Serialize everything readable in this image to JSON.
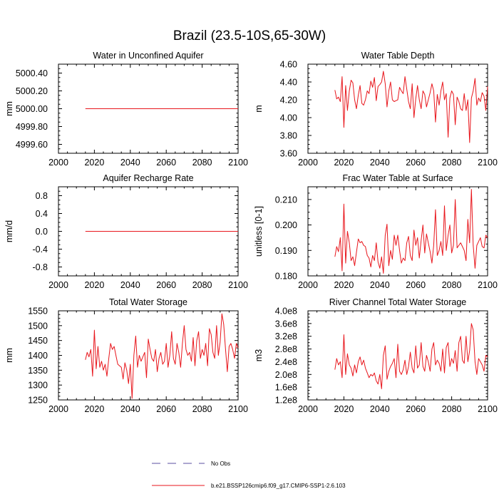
{
  "title": "Brazil (23.5-10S,65-30W)",
  "colors": {
    "series": "#e8161c",
    "obs": "#5b4fa0",
    "axis": "#000000"
  },
  "legend": {
    "obs_label": "No Obs",
    "model_label": "b.e21.BSSP126cmip6.f09_g17.CMIP6-SSP1-2.6.103"
  },
  "chart_data": [
    {
      "type": "line",
      "title": "Water in Unconfined Aquifer",
      "ylabel": "mm",
      "xlim": [
        2000,
        2100
      ],
      "xticks": [
        2000,
        2020,
        2040,
        2060,
        2080,
        2100
      ],
      "ylim": [
        4999.5,
        5000.5
      ],
      "yticks": [
        4999.6,
        4999.8,
        5000.0,
        5000.2,
        5000.4
      ],
      "ytick_labels": [
        "4999.60",
        "4999.80",
        "5000.00",
        "5000.20",
        "5000.40"
      ],
      "x_start": 2015,
      "x_end": 2100,
      "values": [
        5000,
        5000,
        5000,
        5000,
        5000,
        5000,
        5000,
        5000,
        5000,
        5000,
        5000,
        5000,
        5000,
        5000,
        5000,
        5000,
        5000,
        5000,
        5000,
        5000,
        5000,
        5000,
        5000,
        5000,
        5000,
        5000,
        5000,
        5000,
        5000,
        5000,
        5000,
        5000,
        5000,
        5000,
        5000,
        5000,
        5000,
        5000,
        5000,
        5000,
        5000,
        5000,
        5000,
        5000,
        5000,
        5000,
        5000,
        5000,
        5000,
        5000,
        5000,
        5000,
        5000,
        5000,
        5000,
        5000,
        5000,
        5000,
        5000,
        5000,
        5000,
        5000,
        5000,
        5000,
        5000,
        5000,
        5000,
        5000,
        5000,
        5000,
        5000,
        5000,
        5000,
        5000,
        5000,
        5000,
        5000,
        5000,
        5000,
        5000,
        5000,
        5000,
        5000,
        5000,
        5000,
        5000
      ]
    },
    {
      "type": "line",
      "title": "Water Table Depth",
      "ylabel": "m",
      "xlim": [
        2000,
        2100
      ],
      "xticks": [
        2000,
        2020,
        2040,
        2060,
        2080,
        2100
      ],
      "ylim": [
        3.6,
        4.6
      ],
      "yticks": [
        3.6,
        3.8,
        4.0,
        4.2,
        4.4,
        4.6
      ],
      "ytick_labels": [
        "3.60",
        "3.80",
        "4.00",
        "4.20",
        "4.40",
        "4.60"
      ],
      "x_start": 2015,
      "x_end": 2100,
      "values": [
        4.31,
        4.21,
        4.23,
        4.18,
        4.46,
        3.89,
        4.36,
        4.08,
        4.3,
        4.42,
        4.39,
        4.2,
        4.1,
        4.25,
        4.36,
        4.16,
        4.14,
        4.2,
        4.3,
        4.27,
        4.41,
        4.34,
        4.45,
        4.19,
        4.35,
        4.37,
        4.4,
        4.52,
        4.38,
        4.12,
        4.3,
        4.4,
        4.2,
        4.18,
        4.19,
        4.2,
        4.34,
        4.3,
        4.27,
        4.46,
        4.32,
        4.18,
        4.1,
        4.38,
        4.0,
        4.21,
        4.36,
        4.2,
        4.1,
        4.3,
        4.26,
        4.12,
        4.2,
        4.28,
        4.38,
        4.3,
        3.95,
        4.26,
        4.14,
        4.3,
        4.4,
        4.2,
        4.27,
        3.78,
        4.22,
        4.3,
        4.26,
        3.92,
        4.23,
        4.18,
        4.1,
        4.08,
        4.27,
        4.08,
        4.2,
        3.72,
        4.22,
        4.3,
        4.44,
        4.14,
        4.22,
        4.18,
        4.28,
        4.24,
        4.08,
        4.35
      ]
    },
    {
      "type": "line",
      "title": "Aquifer Recharge Rate",
      "ylabel": "mm/d",
      "xlim": [
        2000,
        2100
      ],
      "xticks": [
        2000,
        2020,
        2040,
        2060,
        2080,
        2100
      ],
      "ylim": [
        -1,
        1
      ],
      "yticks": [
        -0.8,
        -0.4,
        0,
        0.4,
        0.8
      ],
      "ytick_labels": [
        "-0.8",
        "-0.4",
        "0.0",
        "0.4",
        "0.8"
      ],
      "x_start": 2015,
      "x_end": 2100,
      "values": [
        0,
        0,
        0,
        0,
        0,
        0,
        0,
        0,
        0,
        0,
        0,
        0,
        0,
        0,
        0,
        0,
        0,
        0,
        0,
        0,
        0,
        0,
        0,
        0,
        0,
        0,
        0,
        0,
        0,
        0,
        0,
        0,
        0,
        0,
        0,
        0,
        0,
        0,
        0,
        0,
        0,
        0,
        0,
        0,
        0,
        0,
        0,
        0,
        0,
        0,
        0,
        0,
        0,
        0,
        0,
        0,
        0,
        0,
        0,
        0,
        0,
        0,
        0,
        0,
        0,
        0,
        0,
        0,
        0,
        0,
        0,
        0,
        0,
        0,
        0,
        0,
        0,
        0,
        0,
        0,
        0,
        0,
        0,
        0,
        0,
        0
      ]
    },
    {
      "type": "line",
      "title": "Frac Water Table at Surface",
      "ylabel": "unitless [0-1]",
      "xlim": [
        2000,
        2100
      ],
      "xticks": [
        2000,
        2020,
        2040,
        2060,
        2080,
        2100
      ],
      "ylim": [
        0.18,
        0.215
      ],
      "yticks": [
        0.18,
        0.19,
        0.2,
        0.21
      ],
      "ytick_labels": [
        "0.180",
        "0.190",
        "0.200",
        "0.210"
      ],
      "x_start": 2015,
      "x_end": 2100,
      "values": [
        0.1875,
        0.1915,
        0.1895,
        0.195,
        0.182,
        0.2082,
        0.185,
        0.1975,
        0.193,
        0.186,
        0.1875,
        0.184,
        0.1892,
        0.1945,
        0.193,
        0.1935,
        0.192,
        0.1915,
        0.188,
        0.187,
        0.1835,
        0.188,
        0.186,
        0.193,
        0.1855,
        0.183,
        0.1875,
        0.181,
        0.196,
        0.2003,
        0.184,
        0.19,
        0.1865,
        0.196,
        0.192,
        0.196,
        0.19,
        0.185,
        0.187,
        0.186,
        0.193,
        0.1955,
        0.188,
        0.186,
        0.198,
        0.192,
        0.195,
        0.187,
        0.194,
        0.2,
        0.189,
        0.1965,
        0.193,
        0.1895,
        0.185,
        0.192,
        0.206,
        0.188,
        0.19,
        0.1935,
        0.188,
        0.2075,
        0.19,
        0.196,
        0.2,
        0.189,
        0.192,
        0.21,
        0.191,
        0.192,
        0.193,
        0.1915,
        0.19,
        0.186,
        0.2022,
        0.193,
        0.214,
        0.192,
        0.183,
        0.192,
        0.1935,
        0.195,
        0.1915,
        0.191,
        0.196,
        0.195
      ]
    },
    {
      "type": "line",
      "title": "Total Water Storage",
      "ylabel": "mm",
      "xlim": [
        2000,
        2100
      ],
      "xticks": [
        2000,
        2020,
        2040,
        2060,
        2080,
        2100
      ],
      "ylim": [
        1250,
        1550
      ],
      "yticks": [
        1250,
        1300,
        1350,
        1400,
        1450,
        1500,
        1550
      ],
      "ytick_labels": [
        "1250",
        "1300",
        "1350",
        "1400",
        "1450",
        "1500",
        "1550"
      ],
      "x_start": 2015,
      "x_end": 2100,
      "values": [
        1385,
        1410,
        1395,
        1420,
        1330,
        1485,
        1355,
        1430,
        1360,
        1380,
        1350,
        1370,
        1330,
        1390,
        1440,
        1420,
        1430,
        1400,
        1370,
        1365,
        1360,
        1320,
        1375,
        1350,
        1305,
        1370,
        1255,
        1400,
        1465,
        1360,
        1400,
        1380,
        1395,
        1410,
        1325,
        1455,
        1420,
        1390,
        1380,
        1420,
        1345,
        1390,
        1410,
        1370,
        1380,
        1440,
        1360,
        1400,
        1480,
        1390,
        1370,
        1440,
        1410,
        1360,
        1440,
        1500,
        1420,
        1400,
        1410,
        1380,
        1460,
        1365,
        1450,
        1480,
        1390,
        1420,
        1400,
        1440,
        1365,
        1490,
        1470,
        1410,
        1390,
        1500,
        1400,
        1445,
        1540,
        1505,
        1420,
        1345,
        1430,
        1440,
        1420,
        1390,
        1440,
        1425
      ]
    },
    {
      "type": "line",
      "title": "River Channel Total Water Storage",
      "ylabel": "m3",
      "xlim": [
        2000,
        2100
      ],
      "xticks": [
        2000,
        2020,
        2040,
        2060,
        2080,
        2100
      ],
      "ylim": [
        120000000,
        400000000
      ],
      "yticks": [
        120000000,
        160000000,
        200000000,
        240000000,
        280000000,
        320000000,
        360000000,
        400000000
      ],
      "ytick_labels": [
        "1.2e8",
        "1.6e8",
        "2.0e8",
        "2.4e8",
        "2.8e8",
        "3.2e8",
        "3.6e8",
        "4.0e8"
      ],
      "x_start": 2015,
      "x_end": 2100,
      "values": [
        215000000,
        250000000,
        230000000,
        240000000,
        190000000,
        325000000,
        200000000,
        265000000,
        230000000,
        220000000,
        195000000,
        230000000,
        205000000,
        240000000,
        255000000,
        230000000,
        245000000,
        220000000,
        205000000,
        190000000,
        200000000,
        195000000,
        205000000,
        180000000,
        170000000,
        200000000,
        155000000,
        260000000,
        290000000,
        185000000,
        210000000,
        225000000,
        235000000,
        250000000,
        190000000,
        295000000,
        210000000,
        200000000,
        215000000,
        245000000,
        200000000,
        225000000,
        270000000,
        220000000,
        205000000,
        290000000,
        220000000,
        230000000,
        300000000,
        225000000,
        210000000,
        260000000,
        240000000,
        210000000,
        280000000,
        300000000,
        230000000,
        245000000,
        235000000,
        210000000,
        280000000,
        205000000,
        285000000,
        300000000,
        225000000,
        250000000,
        235000000,
        275000000,
        210000000,
        300000000,
        320000000,
        245000000,
        235000000,
        320000000,
        240000000,
        275000000,
        360000000,
        340000000,
        240000000,
        200000000,
        250000000,
        240000000,
        230000000,
        210000000,
        260000000,
        255000000
      ]
    }
  ]
}
